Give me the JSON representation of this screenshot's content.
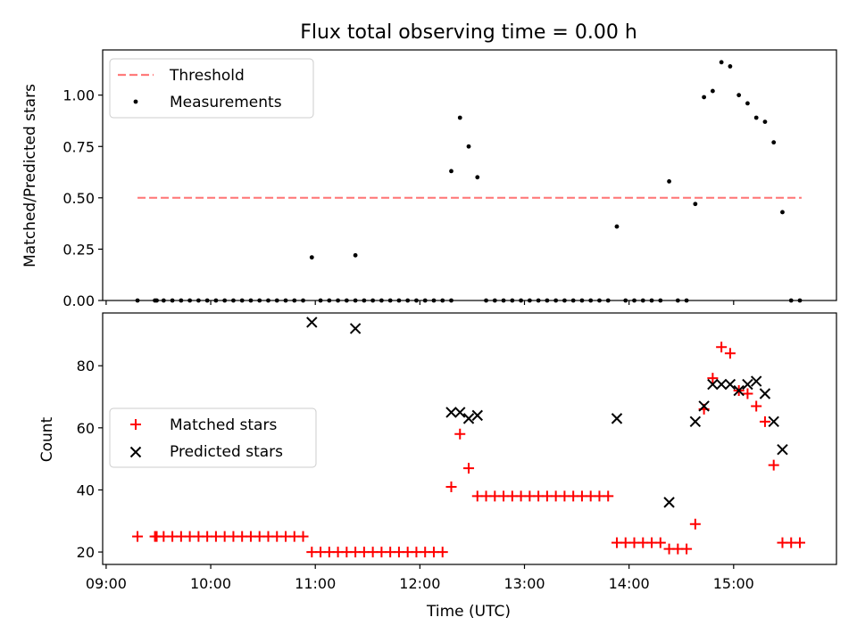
{
  "title": "Flux total observing time = 0.00 h",
  "chart_data": [
    {
      "type": "scatter",
      "ylabel": "Matched/Predicted stars",
      "ylim": [
        0,
        1.22
      ],
      "xlim": [
        "08:58",
        "15:59"
      ],
      "yticks": [
        0.0,
        0.25,
        0.5,
        0.75,
        1.0
      ],
      "ytick_labels": [
        "0.00",
        "0.25",
        "0.50",
        "0.75",
        "1.00"
      ],
      "legend_position": "upper-left",
      "legend": [
        "Threshold",
        "Measurements"
      ],
      "threshold": {
        "name": "Threshold",
        "y": 0.5,
        "x": [
          "09:18",
          "15:39"
        ],
        "color": "#ff7b7b",
        "style": "dashed"
      },
      "series": [
        {
          "name": "Measurements",
          "color": "#000000",
          "marker": "dot",
          "points": [
            [
              "09:18",
              0
            ],
            [
              "09:28",
              0
            ],
            [
              "09:29",
              0
            ],
            [
              "09:33",
              0
            ],
            [
              "09:38",
              0
            ],
            [
              "09:43",
              0
            ],
            [
              "09:48",
              0
            ],
            [
              "09:53",
              0
            ],
            [
              "09:58",
              0
            ],
            [
              "10:03",
              0
            ],
            [
              "10:08",
              0
            ],
            [
              "10:13",
              0
            ],
            [
              "10:18",
              0
            ],
            [
              "10:23",
              0
            ],
            [
              "10:28",
              0
            ],
            [
              "10:33",
              0
            ],
            [
              "10:38",
              0
            ],
            [
              "10:43",
              0
            ],
            [
              "10:48",
              0
            ],
            [
              "10:53",
              0
            ],
            [
              "10:58",
              0.21
            ],
            [
              "11:03",
              0
            ],
            [
              "11:08",
              0
            ],
            [
              "11:13",
              0
            ],
            [
              "11:18",
              0
            ],
            [
              "11:23",
              0
            ],
            [
              "11:23",
              0.22
            ],
            [
              "11:28",
              0
            ],
            [
              "11:33",
              0
            ],
            [
              "11:38",
              0
            ],
            [
              "11:43",
              0
            ],
            [
              "11:48",
              0
            ],
            [
              "11:53",
              0
            ],
            [
              "11:58",
              0
            ],
            [
              "12:03",
              0
            ],
            [
              "12:08",
              0
            ],
            [
              "12:13",
              0
            ],
            [
              "12:18",
              0
            ],
            [
              "12:18",
              0.63
            ],
            [
              "12:23",
              0.89
            ],
            [
              "12:28",
              0.75
            ],
            [
              "12:33",
              0.6
            ],
            [
              "12:38",
              0
            ],
            [
              "12:43",
              0
            ],
            [
              "12:48",
              0
            ],
            [
              "12:53",
              0
            ],
            [
              "12:58",
              0
            ],
            [
              "13:03",
              0
            ],
            [
              "13:08",
              0
            ],
            [
              "13:13",
              0
            ],
            [
              "13:18",
              0
            ],
            [
              "13:23",
              0
            ],
            [
              "13:28",
              0
            ],
            [
              "13:33",
              0
            ],
            [
              "13:38",
              0
            ],
            [
              "13:43",
              0
            ],
            [
              "13:48",
              0
            ],
            [
              "13:53",
              0.36
            ],
            [
              "13:58",
              0
            ],
            [
              "14:03",
              0
            ],
            [
              "14:08",
              0
            ],
            [
              "14:13",
              0
            ],
            [
              "14:18",
              0
            ],
            [
              "14:23",
              0.58
            ],
            [
              "14:28",
              0
            ],
            [
              "14:33",
              0
            ],
            [
              "14:38",
              0.47
            ],
            [
              "14:43",
              0.99
            ],
            [
              "14:48",
              1.02
            ],
            [
              "14:53",
              1.16
            ],
            [
              "14:58",
              1.14
            ],
            [
              "15:03",
              1.0
            ],
            [
              "15:08",
              0.96
            ],
            [
              "15:13",
              0.89
            ],
            [
              "15:18",
              0.87
            ],
            [
              "15:23",
              0.77
            ],
            [
              "15:28",
              0.43
            ],
            [
              "15:33",
              0
            ],
            [
              "15:38",
              0
            ]
          ]
        }
      ]
    },
    {
      "type": "scatter",
      "xlabel": "Time (UTC)",
      "ylabel": "Count",
      "ylim": [
        16,
        97
      ],
      "xlim": [
        "08:58",
        "15:59"
      ],
      "xtick_labels": [
        "09:00",
        "10:00",
        "11:00",
        "12:00",
        "13:00",
        "14:00",
        "15:00"
      ],
      "yticks": [
        20,
        40,
        60,
        80
      ],
      "ytick_labels": [
        "20",
        "40",
        "60",
        "80"
      ],
      "legend_position": "center-left",
      "legend": [
        "Matched stars",
        "Predicted stars"
      ],
      "series": [
        {
          "name": "Matched stars",
          "color": "#ff0000",
          "marker": "plus",
          "points": [
            [
              "09:18",
              25
            ],
            [
              "09:28",
              25
            ],
            [
              "09:29",
              25
            ],
            [
              "09:33",
              25
            ],
            [
              "09:38",
              25
            ],
            [
              "09:43",
              25
            ],
            [
              "09:48",
              25
            ],
            [
              "09:53",
              25
            ],
            [
              "09:58",
              25
            ],
            [
              "10:03",
              25
            ],
            [
              "10:08",
              25
            ],
            [
              "10:13",
              25
            ],
            [
              "10:18",
              25
            ],
            [
              "10:23",
              25
            ],
            [
              "10:28",
              25
            ],
            [
              "10:33",
              25
            ],
            [
              "10:38",
              25
            ],
            [
              "10:43",
              25
            ],
            [
              "10:48",
              25
            ],
            [
              "10:53",
              25
            ],
            [
              "10:58",
              20
            ],
            [
              "11:03",
              20
            ],
            [
              "11:08",
              20
            ],
            [
              "11:13",
              20
            ],
            [
              "11:18",
              20
            ],
            [
              "11:23",
              20
            ],
            [
              "11:28",
              20
            ],
            [
              "11:33",
              20
            ],
            [
              "11:38",
              20
            ],
            [
              "11:43",
              20
            ],
            [
              "11:48",
              20
            ],
            [
              "11:53",
              20
            ],
            [
              "11:58",
              20
            ],
            [
              "12:03",
              20
            ],
            [
              "12:08",
              20
            ],
            [
              "12:13",
              20
            ],
            [
              "12:18",
              41
            ],
            [
              "12:23",
              58
            ],
            [
              "12:28",
              47
            ],
            [
              "12:33",
              38
            ],
            [
              "12:38",
              38
            ],
            [
              "12:43",
              38
            ],
            [
              "12:48",
              38
            ],
            [
              "12:53",
              38
            ],
            [
              "12:58",
              38
            ],
            [
              "13:03",
              38
            ],
            [
              "13:08",
              38
            ],
            [
              "13:13",
              38
            ],
            [
              "13:18",
              38
            ],
            [
              "13:23",
              38
            ],
            [
              "13:28",
              38
            ],
            [
              "13:33",
              38
            ],
            [
              "13:38",
              38
            ],
            [
              "13:43",
              38
            ],
            [
              "13:48",
              38
            ],
            [
              "13:53",
              23
            ],
            [
              "13:58",
              23
            ],
            [
              "14:03",
              23
            ],
            [
              "14:08",
              23
            ],
            [
              "14:13",
              23
            ],
            [
              "14:18",
              23
            ],
            [
              "14:23",
              21
            ],
            [
              "14:28",
              21
            ],
            [
              "14:33",
              21
            ],
            [
              "14:38",
              29
            ],
            [
              "14:43",
              66
            ],
            [
              "14:48",
              76
            ],
            [
              "14:53",
              86
            ],
            [
              "14:58",
              84
            ],
            [
              "15:03",
              72
            ],
            [
              "15:08",
              71
            ],
            [
              "15:13",
              67
            ],
            [
              "15:18",
              62
            ],
            [
              "15:23",
              48
            ],
            [
              "15:28",
              23
            ],
            [
              "15:33",
              23
            ],
            [
              "15:38",
              23
            ]
          ]
        },
        {
          "name": "Predicted stars",
          "color": "#000000",
          "marker": "x",
          "points": [
            [
              "10:58",
              94
            ],
            [
              "11:23",
              92
            ],
            [
              "12:18",
              65
            ],
            [
              "12:23",
              65
            ],
            [
              "12:28",
              63
            ],
            [
              "12:33",
              64
            ],
            [
              "13:53",
              63
            ],
            [
              "14:23",
              36
            ],
            [
              "14:38",
              62
            ],
            [
              "14:43",
              67
            ],
            [
              "14:48",
              74
            ],
            [
              "14:53",
              74
            ],
            [
              "14:58",
              74
            ],
            [
              "15:03",
              72
            ],
            [
              "15:08",
              74
            ],
            [
              "15:13",
              75
            ],
            [
              "15:18",
              71
            ],
            [
              "15:23",
              62
            ],
            [
              "15:28",
              53
            ]
          ]
        }
      ]
    }
  ]
}
